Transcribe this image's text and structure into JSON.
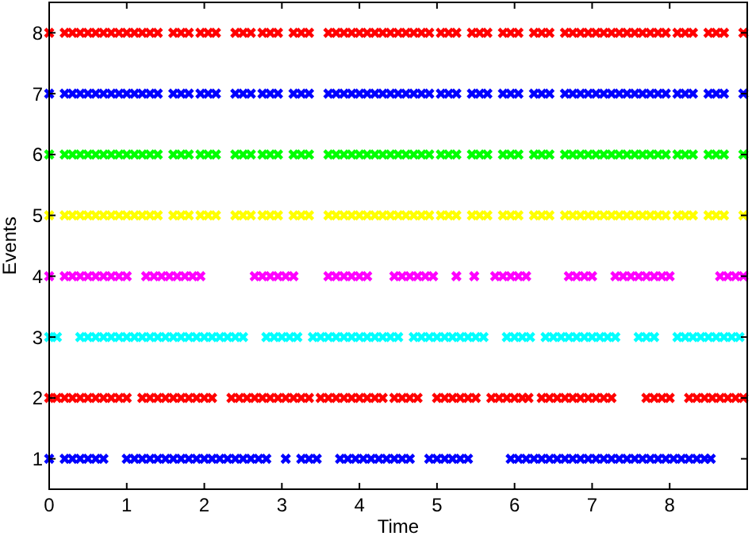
{
  "chart_data": {
    "type": "scatter",
    "xlabel": "Time",
    "ylabel": "Events",
    "xlim": [
      0,
      9
    ],
    "xticks": [
      0,
      1,
      2,
      3,
      4,
      5,
      6,
      7,
      8
    ],
    "ylim": [
      0.5,
      8.5
    ],
    "yticks": [
      1,
      2,
      3,
      4,
      5,
      6,
      7,
      8
    ],
    "marker": "cross",
    "series": [
      {
        "color": "#0000ff",
        "x": [
          0,
          0.2,
          0.3,
          0.4,
          0.5,
          0.6,
          0.7,
          1,
          1.1,
          1.2,
          1.3,
          1.4,
          1.5,
          1.6,
          1.7,
          1.8,
          1.9,
          2,
          2.1,
          2.2,
          2.3,
          2.4,
          2.5,
          2.6,
          2.7,
          2.8,
          3.05,
          3.25,
          3.35,
          3.45,
          3.75,
          3.85,
          3.95,
          4.05,
          4.15,
          4.25,
          4.35,
          4.45,
          4.55,
          4.65,
          4.9,
          5,
          5.1,
          5.2,
          5.3,
          5.4,
          5.95,
          6.05,
          6.15,
          6.25,
          6.35,
          6.45,
          6.55,
          6.65,
          6.75,
          6.85,
          6.95,
          7.05,
          7.15,
          7.25,
          7.35,
          7.45,
          7.55,
          7.65,
          7.75,
          7.85,
          7.95,
          8.05,
          8.15,
          8.25,
          8.35,
          8.45,
          8.53
        ],
        "values": [
          1,
          1,
          1,
          1,
          1,
          1,
          1,
          1,
          1,
          1,
          1,
          1,
          1,
          1,
          1,
          1,
          1,
          1,
          1,
          1,
          1,
          1,
          1,
          1,
          1,
          1,
          1,
          1,
          1,
          1,
          1,
          1,
          1,
          1,
          1,
          1,
          1,
          1,
          1,
          1,
          1,
          1,
          1,
          1,
          1,
          1,
          1,
          1,
          1,
          1,
          1,
          1,
          1,
          1,
          1,
          1,
          1,
          1,
          1,
          1,
          1,
          1,
          1,
          1,
          1,
          1,
          1,
          1,
          1,
          1,
          1,
          1,
          1
        ]
      },
      {
        "color": "#ff0000",
        "x": [
          0,
          0.1,
          0.2,
          0.3,
          0.4,
          0.5,
          0.6,
          0.7,
          0.8,
          0.9,
          1,
          1.2,
          1.3,
          1.4,
          1.5,
          1.6,
          1.7,
          1.8,
          1.9,
          2,
          2.1,
          2.35,
          2.45,
          2.55,
          2.65,
          2.75,
          2.85,
          2.95,
          3.05,
          3.15,
          3.25,
          3.35,
          3.5,
          3.6,
          3.7,
          3.8,
          3.9,
          4,
          4.1,
          4.2,
          4.3,
          4.45,
          4.55,
          4.65,
          4.75,
          5,
          5.1,
          5.2,
          5.3,
          5.4,
          5.5,
          5.7,
          5.8,
          5.9,
          6,
          6.1,
          6.18,
          6.35,
          6.45,
          6.55,
          6.65,
          6.75,
          6.85,
          6.95,
          7.05,
          7.15,
          7.25,
          7.7,
          7.8,
          7.9,
          8,
          8.25,
          8.35,
          8.45,
          8.55,
          8.65,
          8.75,
          8.85,
          8.95
        ],
        "values": [
          2,
          2,
          2,
          2,
          2,
          2,
          2,
          2,
          2,
          2,
          2,
          2,
          2,
          2,
          2,
          2,
          2,
          2,
          2,
          2,
          2,
          2,
          2,
          2,
          2,
          2,
          2,
          2,
          2,
          2,
          2,
          2,
          2,
          2,
          2,
          2,
          2,
          2,
          2,
          2,
          2,
          2,
          2,
          2,
          2,
          2,
          2,
          2,
          2,
          2,
          2,
          2,
          2,
          2,
          2,
          2,
          2,
          2,
          2,
          2,
          2,
          2,
          2,
          2,
          2,
          2,
          2,
          2,
          2,
          2,
          2,
          2,
          2,
          2,
          2,
          2,
          2,
          2,
          2
        ]
      },
      {
        "color": "#00ffff",
        "x": [
          0,
          0.1,
          0.4,
          0.5,
          0.6,
          0.7,
          0.8,
          0.9,
          1,
          1.1,
          1.2,
          1.3,
          1.4,
          1.5,
          1.6,
          1.7,
          1.8,
          1.9,
          2,
          2.1,
          2.2,
          2.3,
          2.4,
          2.5,
          2.8,
          2.9,
          3,
          3.1,
          3.2,
          3.4,
          3.5,
          3.6,
          3.7,
          3.8,
          3.9,
          4,
          4.1,
          4.2,
          4.3,
          4.4,
          4.5,
          4.7,
          4.8,
          4.9,
          5,
          5.1,
          5.2,
          5.3,
          5.4,
          5.5,
          5.6,
          5.9,
          6,
          6.1,
          6.2,
          6.4,
          6.5,
          6.6,
          6.7,
          6.8,
          6.9,
          7,
          7.1,
          7.2,
          7.3,
          7.6,
          7.7,
          7.8,
          8.1,
          8.2,
          8.3,
          8.4,
          8.5,
          8.6,
          8.7,
          8.8,
          8.9
        ],
        "values": [
          3,
          3,
          3,
          3,
          3,
          3,
          3,
          3,
          3,
          3,
          3,
          3,
          3,
          3,
          3,
          3,
          3,
          3,
          3,
          3,
          3,
          3,
          3,
          3,
          3,
          3,
          3,
          3,
          3,
          3,
          3,
          3,
          3,
          3,
          3,
          3,
          3,
          3,
          3,
          3,
          3,
          3,
          3,
          3,
          3,
          3,
          3,
          3,
          3,
          3,
          3,
          3,
          3,
          3,
          3,
          3,
          3,
          3,
          3,
          3,
          3,
          3,
          3,
          3,
          3,
          3,
          3,
          3,
          3,
          3,
          3,
          3,
          3,
          3,
          3,
          3,
          3
        ]
      },
      {
        "color": "#ff00ff",
        "x": [
          0,
          0.2,
          0.3,
          0.4,
          0.5,
          0.6,
          0.7,
          0.8,
          0.9,
          1,
          1.25,
          1.35,
          1.45,
          1.55,
          1.65,
          1.75,
          1.85,
          1.95,
          2.65,
          2.75,
          2.85,
          2.95,
          3.05,
          3.15,
          3.6,
          3.7,
          3.8,
          3.9,
          4,
          4.1,
          4.45,
          4.55,
          4.65,
          4.75,
          4.85,
          4.95,
          5.25,
          5.48,
          5.75,
          5.85,
          5.95,
          6.05,
          6.15,
          6.7,
          6.8,
          6.9,
          7,
          7.3,
          7.4,
          7.5,
          7.6,
          7.7,
          7.8,
          7.9,
          8,
          8.65,
          8.75,
          8.85,
          8.95
        ],
        "values": [
          4,
          4,
          4,
          4,
          4,
          4,
          4,
          4,
          4,
          4,
          4,
          4,
          4,
          4,
          4,
          4,
          4,
          4,
          4,
          4,
          4,
          4,
          4,
          4,
          4,
          4,
          4,
          4,
          4,
          4,
          4,
          4,
          4,
          4,
          4,
          4,
          4,
          4,
          4,
          4,
          4,
          4,
          4,
          4,
          4,
          4,
          4,
          4,
          4,
          4,
          4,
          4,
          4,
          4,
          4,
          4,
          4,
          4,
          4
        ]
      },
      {
        "color": "#ffff00",
        "x": [
          0,
          0.2,
          0.3,
          0.4,
          0.5,
          0.6,
          0.7,
          0.8,
          0.9,
          1,
          1.1,
          1.2,
          1.3,
          1.4,
          1.6,
          1.7,
          1.8,
          1.95,
          2.05,
          2.15,
          2.4,
          2.5,
          2.6,
          2.75,
          2.85,
          2.95,
          3.15,
          3.25,
          3.35,
          3.6,
          3.7,
          3.8,
          3.9,
          4,
          4.1,
          4.2,
          4.3,
          4.4,
          4.5,
          4.6,
          4.7,
          4.8,
          4.9,
          5.05,
          5.15,
          5.25,
          5.45,
          5.55,
          5.65,
          5.85,
          5.95,
          6.05,
          6.25,
          6.35,
          6.45,
          6.65,
          6.75,
          6.85,
          6.95,
          7.05,
          7.15,
          7.25,
          7.35,
          7.45,
          7.55,
          7.65,
          7.75,
          7.85,
          7.95,
          8.1,
          8.2,
          8.3,
          8.5,
          8.6,
          8.7,
          8.95
        ],
        "values": [
          5,
          5,
          5,
          5,
          5,
          5,
          5,
          5,
          5,
          5,
          5,
          5,
          5,
          5,
          5,
          5,
          5,
          5,
          5,
          5,
          5,
          5,
          5,
          5,
          5,
          5,
          5,
          5,
          5,
          5,
          5,
          5,
          5,
          5,
          5,
          5,
          5,
          5,
          5,
          5,
          5,
          5,
          5,
          5,
          5,
          5,
          5,
          5,
          5,
          5,
          5,
          5,
          5,
          5,
          5,
          5,
          5,
          5,
          5,
          5,
          5,
          5,
          5,
          5,
          5,
          5,
          5,
          5,
          5,
          5,
          5,
          5,
          5,
          5,
          5,
          5
        ]
      },
      {
        "color": "#00ff00",
        "x": [
          0,
          0.2,
          0.3,
          0.4,
          0.5,
          0.6,
          0.7,
          0.8,
          0.9,
          1,
          1.1,
          1.2,
          1.3,
          1.4,
          1.6,
          1.7,
          1.8,
          1.95,
          2.05,
          2.15,
          2.4,
          2.5,
          2.6,
          2.75,
          2.85,
          2.95,
          3.15,
          3.25,
          3.35,
          3.6,
          3.7,
          3.8,
          3.9,
          4,
          4.1,
          4.2,
          4.3,
          4.4,
          4.5,
          4.6,
          4.7,
          4.8,
          4.9,
          5.05,
          5.15,
          5.25,
          5.45,
          5.55,
          5.65,
          5.85,
          5.95,
          6.05,
          6.25,
          6.35,
          6.45,
          6.65,
          6.75,
          6.85,
          6.95,
          7.05,
          7.15,
          7.25,
          7.35,
          7.45,
          7.55,
          7.65,
          7.75,
          7.85,
          7.95,
          8.1,
          8.2,
          8.3,
          8.5,
          8.6,
          8.7,
          8.95
        ],
        "values": [
          6,
          6,
          6,
          6,
          6,
          6,
          6,
          6,
          6,
          6,
          6,
          6,
          6,
          6,
          6,
          6,
          6,
          6,
          6,
          6,
          6,
          6,
          6,
          6,
          6,
          6,
          6,
          6,
          6,
          6,
          6,
          6,
          6,
          6,
          6,
          6,
          6,
          6,
          6,
          6,
          6,
          6,
          6,
          6,
          6,
          6,
          6,
          6,
          6,
          6,
          6,
          6,
          6,
          6,
          6,
          6,
          6,
          6,
          6,
          6,
          6,
          6,
          6,
          6,
          6,
          6,
          6,
          6,
          6,
          6,
          6,
          6,
          6,
          6,
          6,
          6
        ]
      },
      {
        "color": "#0000ff",
        "x": [
          0,
          0.2,
          0.3,
          0.4,
          0.5,
          0.6,
          0.7,
          0.8,
          0.9,
          1,
          1.1,
          1.2,
          1.3,
          1.4,
          1.6,
          1.7,
          1.8,
          1.95,
          2.05,
          2.15,
          2.4,
          2.5,
          2.6,
          2.75,
          2.85,
          2.95,
          3.15,
          3.25,
          3.35,
          3.6,
          3.7,
          3.8,
          3.9,
          4,
          4.1,
          4.2,
          4.3,
          4.4,
          4.5,
          4.6,
          4.7,
          4.8,
          4.9,
          5.05,
          5.15,
          5.25,
          5.45,
          5.55,
          5.65,
          5.85,
          5.95,
          6.05,
          6.25,
          6.35,
          6.45,
          6.65,
          6.75,
          6.85,
          6.95,
          7.05,
          7.15,
          7.25,
          7.35,
          7.45,
          7.55,
          7.65,
          7.75,
          7.85,
          7.95,
          8.1,
          8.2,
          8.3,
          8.5,
          8.6,
          8.7,
          8.95
        ],
        "values": [
          7,
          7,
          7,
          7,
          7,
          7,
          7,
          7,
          7,
          7,
          7,
          7,
          7,
          7,
          7,
          7,
          7,
          7,
          7,
          7,
          7,
          7,
          7,
          7,
          7,
          7,
          7,
          7,
          7,
          7,
          7,
          7,
          7,
          7,
          7,
          7,
          7,
          7,
          7,
          7,
          7,
          7,
          7,
          7,
          7,
          7,
          7,
          7,
          7,
          7,
          7,
          7,
          7,
          7,
          7,
          7,
          7,
          7,
          7,
          7,
          7,
          7,
          7,
          7,
          7,
          7,
          7,
          7,
          7,
          7,
          7,
          7,
          7,
          7,
          7,
          7
        ]
      },
      {
        "color": "#ff0000",
        "x": [
          0,
          0.2,
          0.3,
          0.4,
          0.5,
          0.6,
          0.7,
          0.8,
          0.9,
          1,
          1.1,
          1.2,
          1.3,
          1.4,
          1.6,
          1.7,
          1.8,
          1.95,
          2.05,
          2.15,
          2.4,
          2.5,
          2.6,
          2.75,
          2.85,
          2.95,
          3.15,
          3.25,
          3.35,
          3.6,
          3.7,
          3.8,
          3.9,
          4,
          4.1,
          4.2,
          4.3,
          4.4,
          4.5,
          4.6,
          4.7,
          4.8,
          4.9,
          5.05,
          5.15,
          5.25,
          5.45,
          5.55,
          5.65,
          5.85,
          5.95,
          6.05,
          6.25,
          6.35,
          6.45,
          6.65,
          6.75,
          6.85,
          6.95,
          7.05,
          7.15,
          7.25,
          7.35,
          7.45,
          7.55,
          7.65,
          7.75,
          7.85,
          7.95,
          8.1,
          8.2,
          8.3,
          8.5,
          8.6,
          8.7,
          8.95
        ],
        "values": [
          8,
          8,
          8,
          8,
          8,
          8,
          8,
          8,
          8,
          8,
          8,
          8,
          8,
          8,
          8,
          8,
          8,
          8,
          8,
          8,
          8,
          8,
          8,
          8,
          8,
          8,
          8,
          8,
          8,
          8,
          8,
          8,
          8,
          8,
          8,
          8,
          8,
          8,
          8,
          8,
          8,
          8,
          8,
          8,
          8,
          8,
          8,
          8,
          8,
          8,
          8,
          8,
          8,
          8,
          8,
          8,
          8,
          8,
          8,
          8,
          8,
          8,
          8,
          8,
          8,
          8,
          8,
          8,
          8,
          8,
          8,
          8,
          8,
          8,
          8,
          8
        ]
      }
    ]
  }
}
